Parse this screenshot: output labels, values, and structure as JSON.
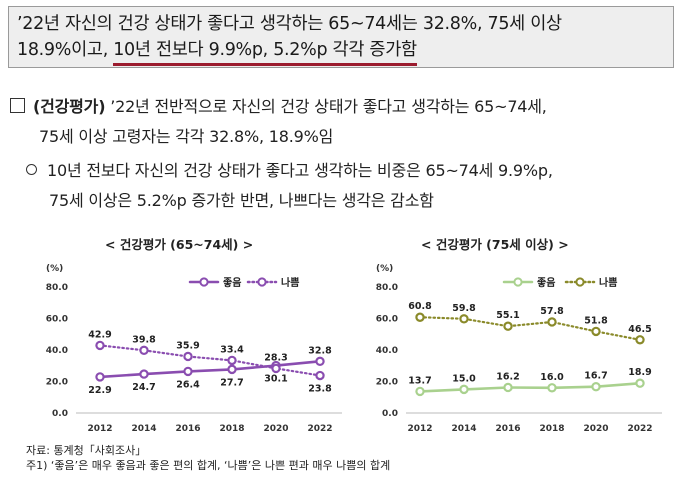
{
  "headline": {
    "line1": "’22년 자신의 건강 상태가 좋다고 생각하는 65~74세는 32.8%, 75세 이상",
    "line2_prefix": "18.9%이고, ",
    "line2_underlined": "10년 전보다 9.9%p, 5.2%p 각각 증가함"
  },
  "bullet_main": {
    "label": "(건강평가)",
    "line1": " ’22년 전반적으로 자신의 건강 상태가 좋다고 생각하는 65~74세,",
    "line2": "75세 이상 고령자는 각각 32.8%, 18.9%임"
  },
  "bullet_sub": {
    "line1": "10년 전보다 자신의 건강 상태가 좋다고 생각하는 비중은 65~74세 9.9%p,",
    "line2": "75세 이상은 5.2%p 증가한 반면, 나쁘다는 생각은 감소함"
  },
  "colors": {
    "good_left": "#8a4db0",
    "bad_left": "#8a4db0",
    "good_right": "#a9d18e",
    "bad_right": "#8a8a2a",
    "underline": "#9b1b2e"
  },
  "chart_data": [
    {
      "type": "line",
      "title": "< 건강평가 (65~74세) >",
      "unit_label": "(%)",
      "categories": [
        "2012",
        "2014",
        "2016",
        "2018",
        "2020",
        "2022"
      ],
      "y_ticks": [
        "80.0",
        "60.0",
        "40.0",
        "20.0",
        "0.0"
      ],
      "ylim": [
        0,
        80
      ],
      "series": [
        {
          "name": "좋음",
          "values": [
            22.9,
            24.7,
            26.4,
            27.7,
            30.1,
            32.8
          ],
          "labels": [
            "22.9",
            "24.7",
            "26.4",
            "27.7",
            "30.1",
            "32.8"
          ],
          "style": "solid"
        },
        {
          "name": "나쁨",
          "values": [
            42.9,
            39.8,
            35.9,
            33.4,
            28.3,
            23.8
          ],
          "labels": [
            "42.9",
            "39.8",
            "35.9",
            "33.4",
            "28.3",
            "23.8"
          ],
          "style": "dotted"
        }
      ]
    },
    {
      "type": "line",
      "title": "< 건강평가 (75세 이상) >",
      "unit_label": "(%)",
      "categories": [
        "2012",
        "2014",
        "2016",
        "2018",
        "2020",
        "2022"
      ],
      "y_ticks": [
        "80.0",
        "60.0",
        "40.0",
        "20.0",
        "0.0"
      ],
      "ylim": [
        0,
        80
      ],
      "series": [
        {
          "name": "좋음",
          "values": [
            13.7,
            15.0,
            16.2,
            16.0,
            16.7,
            18.9
          ],
          "labels": [
            "13.7",
            "15.0",
            "16.2",
            "16.0",
            "16.7",
            "18.9"
          ],
          "style": "solid"
        },
        {
          "name": "나쁨",
          "values": [
            60.8,
            59.8,
            55.1,
            57.8,
            51.8,
            46.5
          ],
          "labels": [
            "60.8",
            "59.8",
            "55.1",
            "57.8",
            "51.8",
            "46.5"
          ],
          "style": "dotted"
        }
      ]
    }
  ],
  "source": {
    "line1": "자료: 통계청「사회조사」",
    "line2": "주1) ‘좋음’은 매우 좋음과 좋은 편의 합계, ‘나쁨’은 나쁜 편과 매우 나쁨의 합계"
  }
}
